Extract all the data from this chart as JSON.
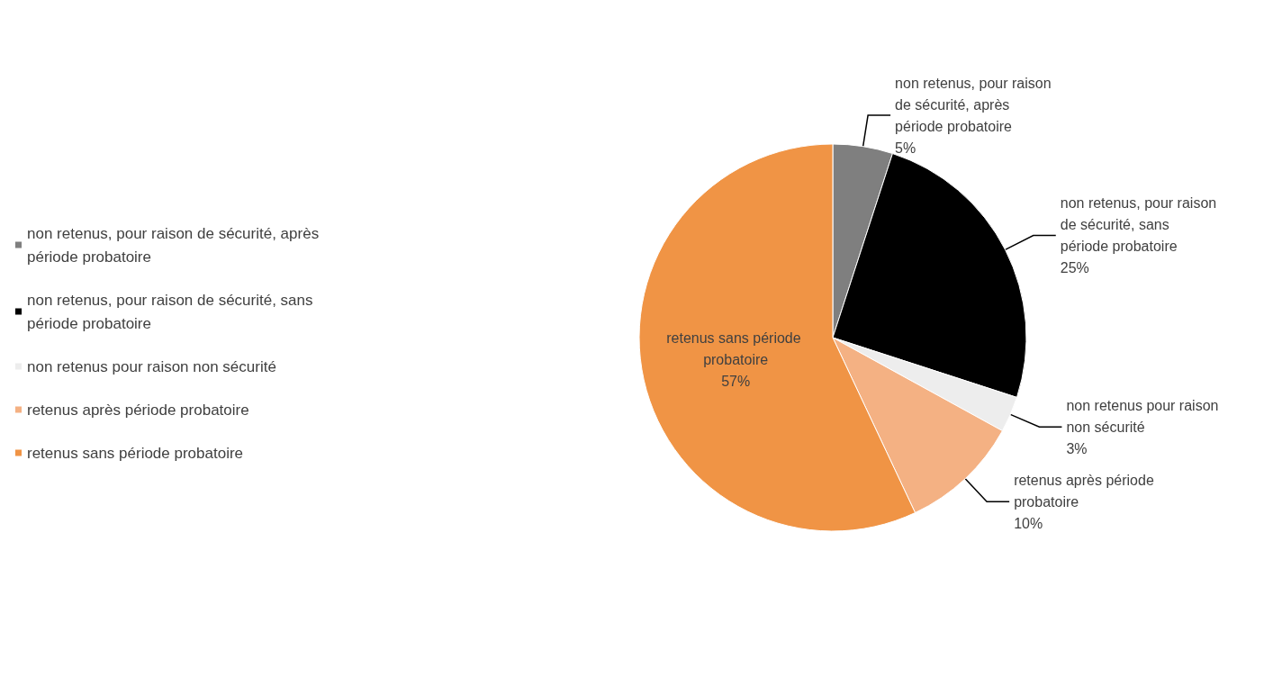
{
  "chart_data": {
    "type": "pie",
    "categories": [
      "non retenus, pour raison de sécurité, après période probatoire",
      "non retenus, pour raison de sécurité, sans période probatoire",
      "non retenus pour raison non sécurité",
      "retenus après période probatoire",
      "retenus sans période probatoire"
    ],
    "values": [
      5,
      25,
      3,
      10,
      57
    ],
    "colors": [
      "#7f7f7f",
      "#000000",
      "#ededed",
      "#f4b183",
      "#f09445"
    ],
    "value_labels": [
      "5%",
      "25%",
      "3%",
      "10%",
      "57%"
    ],
    "legend": "left"
  }
}
